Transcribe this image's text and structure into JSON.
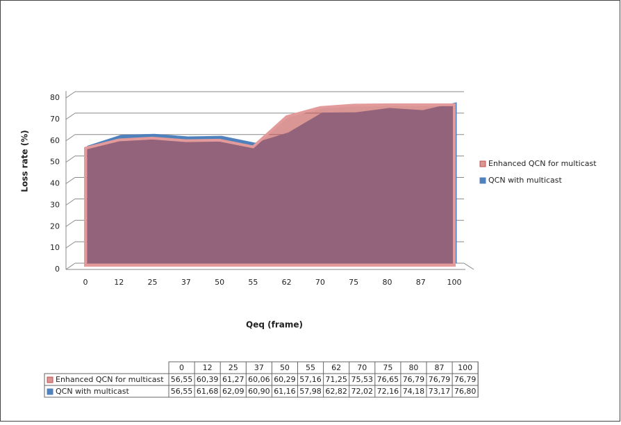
{
  "chart_data": {
    "type": "area",
    "y_label": "Loss rate (%)",
    "x_label": "Qeq (frame)",
    "categories": [
      "0",
      "12",
      "25",
      "37",
      "50",
      "55",
      "62",
      "70",
      "75",
      "80",
      "87",
      "100"
    ],
    "series": [
      {
        "name": "Enhanced QCN for multicast",
        "color": "#c0504d",
        "values": [
          56.55,
          60.39,
          61.27,
          60.06,
          60.29,
          57.16,
          71.25,
          75.53,
          76.65,
          76.79,
          76.79,
          76.79
        ],
        "value_labels": [
          "56,55",
          "60,39",
          "61,27",
          "60,06",
          "60,29",
          "57,16",
          "71,25",
          "75,53",
          "76,65",
          "76,79",
          "76,79",
          "76,79"
        ]
      },
      {
        "name": "QCN with multicast",
        "color": "#4f81bd",
        "values": [
          56.55,
          61.68,
          62.09,
          60.9,
          61.16,
          57.98,
          62.82,
          72.02,
          72.16,
          74.18,
          73.17,
          76.8
        ],
        "value_labels": [
          "56,55",
          "61,68",
          "62,09",
          "60,90",
          "61,16",
          "57,98",
          "62,82",
          "72,02",
          "72,16",
          "74,18",
          "73,17",
          "76,80"
        ]
      }
    ],
    "ylim": [
      0,
      80
    ],
    "yticks": [
      0,
      10,
      20,
      30,
      40,
      50,
      60,
      70,
      80
    ],
    "grid": true,
    "legend": "right",
    "data_table": true
  }
}
